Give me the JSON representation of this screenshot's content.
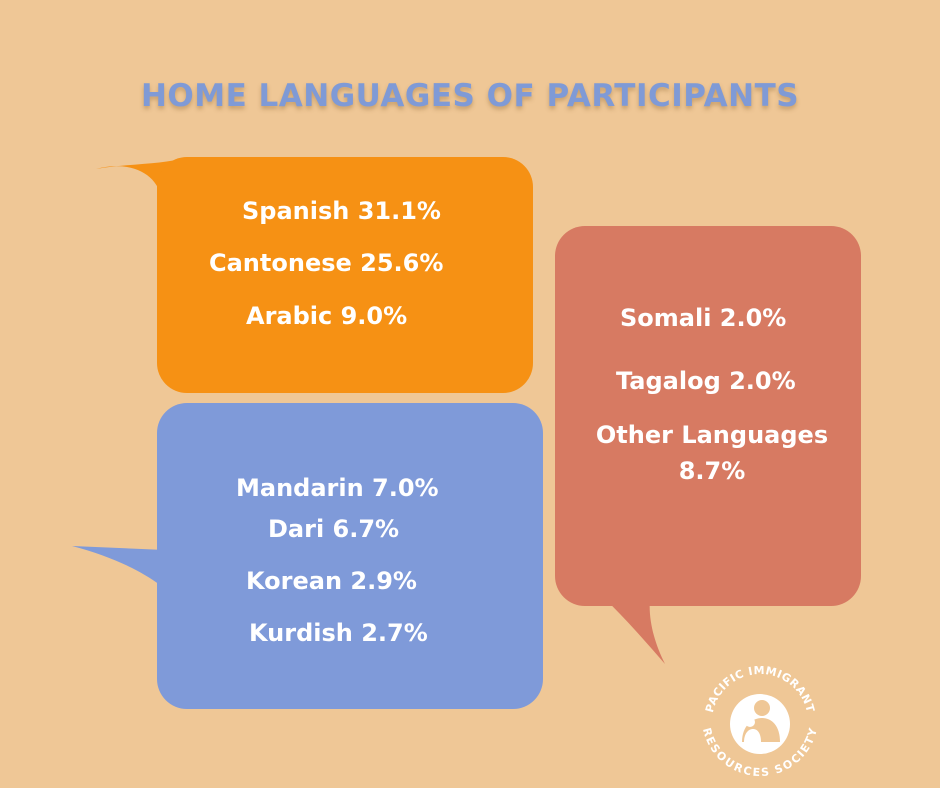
{
  "title": "HOME LANGUAGES OF PARTICIPANTS",
  "colors": {
    "background": "#efc796",
    "orange_bubble": "#f69114",
    "blue_bubble": "#7f9ad9",
    "red_bubble": "#d77a62",
    "title": "#7f9ad6"
  },
  "orange_bubble": {
    "items": [
      "Spanish 31.1%",
      "Cantonese 25.6%",
      "Arabic 9.0%"
    ]
  },
  "blue_bubble": {
    "items": [
      "Mandarin 7.0%",
      "Dari 6.7%",
      "Korean 2.9%",
      "Kurdish 2.7%"
    ]
  },
  "red_bubble": {
    "items": [
      "Somali 2.0%",
      "Tagalog 2.0%"
    ],
    "other_line1": "Other Languages",
    "other_line2": "8.7%"
  },
  "logo": {
    "text_top": "PACIFIC IMMIGRANT",
    "text_bottom": "RESOURCES SOCIETY",
    "icon": "family-figures-icon"
  }
}
